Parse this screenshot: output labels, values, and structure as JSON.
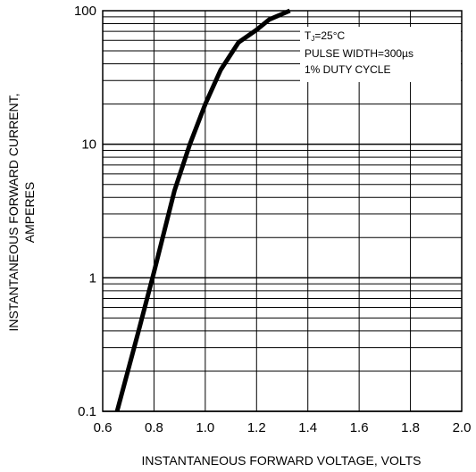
{
  "chart_data": {
    "type": "line",
    "title": "",
    "xlabel": "INSTANTANEOUS FORWARD VOLTAGE, VOLTS",
    "ylabel_lines": [
      "INSTANTANEOUS FORWARD CURRENT,",
      "AMPERES"
    ],
    "xlim": [
      0.6,
      2.0
    ],
    "ylim": [
      0.1,
      100
    ],
    "yscale": "log",
    "grid": true,
    "xticks": [
      0.6,
      0.8,
      1.0,
      1.2,
      1.4,
      1.6,
      1.8,
      2.0
    ],
    "xtick_labels": [
      "0.6",
      "0.8",
      "1.0",
      "1.2",
      "1.4",
      "1.6",
      "1.8",
      "2.0"
    ],
    "yticks": [
      0.1,
      1,
      10,
      100
    ],
    "ytick_labels": [
      "0.1",
      "1",
      "10",
      "100"
    ],
    "annotations": [
      "TJ=25°C",
      "PULSE WIDTH=300µs",
      "1% DUTY CYCLE"
    ],
    "series": [
      {
        "x": [
          0.656,
          0.74,
          0.8,
          0.88,
          0.94,
          1.0,
          1.06,
          1.13,
          1.2,
          1.25,
          1.33
        ],
        "y": [
          0.1,
          0.4,
          1.1,
          4.5,
          10,
          20,
          36,
          58,
          72,
          86,
          100
        ]
      }
    ]
  },
  "colors": {
    "line": "#000000",
    "grid": "#000000",
    "background": "#ffffff"
  }
}
